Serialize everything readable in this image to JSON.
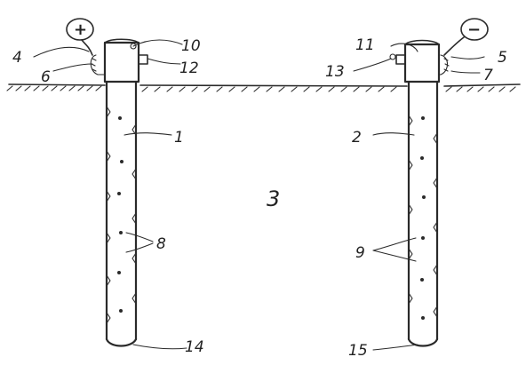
{
  "labels": {
    "n1": "1",
    "n2": "2",
    "n3": "3",
    "n4": "4",
    "n5": "5",
    "n6": "6",
    "n7": "7",
    "n8": "8",
    "n9": "9",
    "n10": "10",
    "n11": "11",
    "n12": "12",
    "n13": "13",
    "n14": "14",
    "n15": "15"
  },
  "terminals": {
    "positive": "+",
    "negative": "−"
  }
}
